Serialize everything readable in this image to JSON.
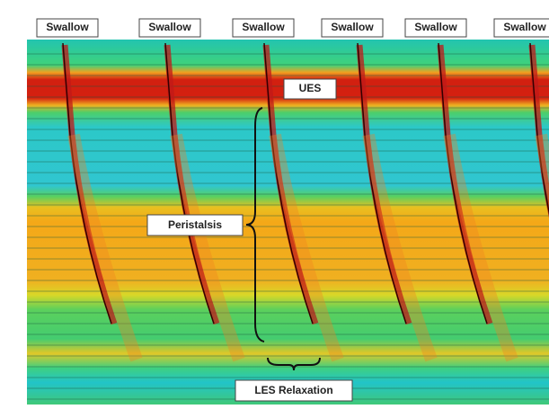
{
  "labels": {
    "swallows": [
      "Swallow",
      "Swallow",
      "Swallow",
      "Swallow",
      "Swallow",
      "Swallow"
    ],
    "ues": "UES",
    "peristalsis": "Peristalsis",
    "les_relaxation": "LES Relaxation"
  }
}
